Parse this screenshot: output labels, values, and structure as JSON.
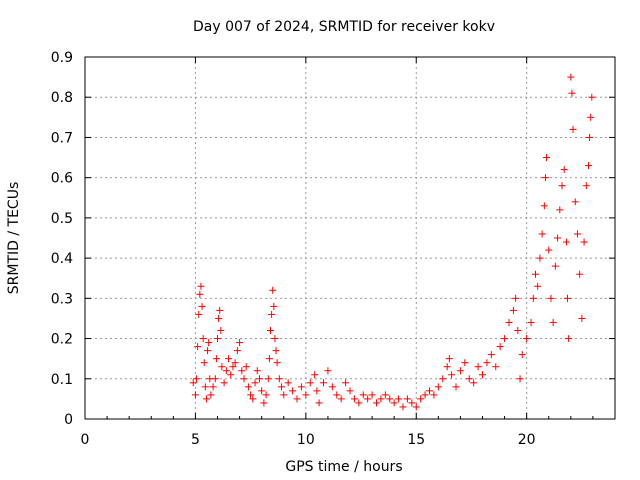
{
  "chart_data": {
    "type": "scatter",
    "title": "Day 007 of 2024, SRMTID for receiver kokv",
    "xlabel": "GPS time / hours",
    "ylabel": "SRMTID / TECUs",
    "xlim": [
      0,
      24
    ],
    "ylim": [
      0,
      0.9
    ],
    "xticks": [
      0,
      5,
      10,
      15,
      20
    ],
    "yticks": [
      0,
      0.1,
      0.2,
      0.3,
      0.4,
      0.5,
      0.6,
      0.7,
      0.8,
      0.9
    ],
    "grid": true,
    "marker": "+",
    "color": "#ff0000",
    "series": [
      {
        "name": "SRMTID",
        "points": [
          [
            4.9,
            0.09
          ],
          [
            5.0,
            0.06
          ],
          [
            5.05,
            0.1
          ],
          [
            5.1,
            0.18
          ],
          [
            5.15,
            0.26
          ],
          [
            5.2,
            0.31
          ],
          [
            5.25,
            0.33
          ],
          [
            5.3,
            0.28
          ],
          [
            5.35,
            0.2
          ],
          [
            5.4,
            0.14
          ],
          [
            5.45,
            0.08
          ],
          [
            5.5,
            0.05
          ],
          [
            5.55,
            0.17
          ],
          [
            5.6,
            0.19
          ],
          [
            5.65,
            0.1
          ],
          [
            5.7,
            0.06
          ],
          [
            5.8,
            0.08
          ],
          [
            5.9,
            0.1
          ],
          [
            5.95,
            0.15
          ],
          [
            6.0,
            0.2
          ],
          [
            6.05,
            0.25
          ],
          [
            6.1,
            0.27
          ],
          [
            6.15,
            0.22
          ],
          [
            6.2,
            0.13
          ],
          [
            6.3,
            0.09
          ],
          [
            6.4,
            0.12
          ],
          [
            6.5,
            0.15
          ],
          [
            6.6,
            0.11
          ],
          [
            6.7,
            0.13
          ],
          [
            6.8,
            0.14
          ],
          [
            6.9,
            0.17
          ],
          [
            7.0,
            0.19
          ],
          [
            7.1,
            0.12
          ],
          [
            7.2,
            0.1
          ],
          [
            7.3,
            0.13
          ],
          [
            7.4,
            0.08
          ],
          [
            7.5,
            0.06
          ],
          [
            7.6,
            0.05
          ],
          [
            7.7,
            0.09
          ],
          [
            7.8,
            0.12
          ],
          [
            7.9,
            0.1
          ],
          [
            8.0,
            0.07
          ],
          [
            8.1,
            0.04
          ],
          [
            8.2,
            0.06
          ],
          [
            8.3,
            0.1
          ],
          [
            8.35,
            0.15
          ],
          [
            8.4,
            0.22
          ],
          [
            8.45,
            0.26
          ],
          [
            8.5,
            0.32
          ],
          [
            8.55,
            0.28
          ],
          [
            8.6,
            0.2
          ],
          [
            8.65,
            0.17
          ],
          [
            8.7,
            0.14
          ],
          [
            8.8,
            0.1
          ],
          [
            8.9,
            0.08
          ],
          [
            9.0,
            0.06
          ],
          [
            9.2,
            0.09
          ],
          [
            9.4,
            0.07
          ],
          [
            9.6,
            0.05
          ],
          [
            9.8,
            0.08
          ],
          [
            10.0,
            0.06
          ],
          [
            10.2,
            0.09
          ],
          [
            10.4,
            0.11
          ],
          [
            10.5,
            0.07
          ],
          [
            10.6,
            0.04
          ],
          [
            10.8,
            0.09
          ],
          [
            11.0,
            0.12
          ],
          [
            11.2,
            0.08
          ],
          [
            11.4,
            0.06
          ],
          [
            11.6,
            0.05
          ],
          [
            11.8,
            0.09
          ],
          [
            12.0,
            0.07
          ],
          [
            12.2,
            0.05
          ],
          [
            12.4,
            0.04
          ],
          [
            12.6,
            0.06
          ],
          [
            12.8,
            0.05
          ],
          [
            13.0,
            0.06
          ],
          [
            13.2,
            0.04
          ],
          [
            13.4,
            0.05
          ],
          [
            13.6,
            0.06
          ],
          [
            13.8,
            0.05
          ],
          [
            14.0,
            0.04
          ],
          [
            14.2,
            0.05
          ],
          [
            14.4,
            0.03
          ],
          [
            14.6,
            0.05
          ],
          [
            14.8,
            0.04
          ],
          [
            15.0,
            0.03
          ],
          [
            15.2,
            0.05
          ],
          [
            15.4,
            0.06
          ],
          [
            15.6,
            0.07
          ],
          [
            15.8,
            0.06
          ],
          [
            16.0,
            0.08
          ],
          [
            16.2,
            0.1
          ],
          [
            16.4,
            0.13
          ],
          [
            16.5,
            0.15
          ],
          [
            16.6,
            0.11
          ],
          [
            16.8,
            0.08
          ],
          [
            17.0,
            0.12
          ],
          [
            17.2,
            0.14
          ],
          [
            17.4,
            0.1
          ],
          [
            17.6,
            0.09
          ],
          [
            17.8,
            0.13
          ],
          [
            18.0,
            0.11
          ],
          [
            18.2,
            0.14
          ],
          [
            18.4,
            0.16
          ],
          [
            18.6,
            0.13
          ],
          [
            18.8,
            0.18
          ],
          [
            19.0,
            0.2
          ],
          [
            19.2,
            0.24
          ],
          [
            19.4,
            0.27
          ],
          [
            19.5,
            0.3
          ],
          [
            19.6,
            0.22
          ],
          [
            19.7,
            0.1
          ],
          [
            19.8,
            0.16
          ],
          [
            20.0,
            0.2
          ],
          [
            20.2,
            0.24
          ],
          [
            20.3,
            0.3
          ],
          [
            20.4,
            0.36
          ],
          [
            20.5,
            0.33
          ],
          [
            20.6,
            0.4
          ],
          [
            20.7,
            0.46
          ],
          [
            20.8,
            0.53
          ],
          [
            20.85,
            0.6
          ],
          [
            20.9,
            0.65
          ],
          [
            21.0,
            0.42
          ],
          [
            21.1,
            0.3
          ],
          [
            21.2,
            0.24
          ],
          [
            21.3,
            0.38
          ],
          [
            21.4,
            0.45
          ],
          [
            21.5,
            0.52
          ],
          [
            21.6,
            0.58
          ],
          [
            21.7,
            0.62
          ],
          [
            21.8,
            0.44
          ],
          [
            21.85,
            0.3
          ],
          [
            21.9,
            0.2
          ],
          [
            22.0,
            0.85
          ],
          [
            22.05,
            0.81
          ],
          [
            22.1,
            0.72
          ],
          [
            22.2,
            0.54
          ],
          [
            22.3,
            0.46
          ],
          [
            22.4,
            0.36
          ],
          [
            22.5,
            0.25
          ],
          [
            22.6,
            0.44
          ],
          [
            22.7,
            0.58
          ],
          [
            22.8,
            0.63
          ],
          [
            22.85,
            0.7
          ],
          [
            22.9,
            0.75
          ],
          [
            22.95,
            0.8
          ]
        ]
      }
    ]
  }
}
